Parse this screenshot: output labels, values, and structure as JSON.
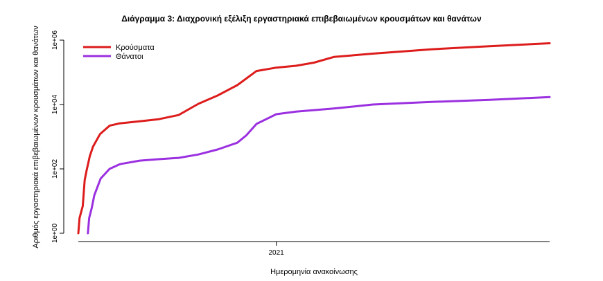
{
  "chart_data": {
    "type": "line",
    "title": "Διάγραμμα 3: Διαχρονική εξέλιξη εργαστηριακά επιβεβαιωμένων κρουσμάτων και θανάτων",
    "xlabel": "Ημερομηνία ανακοίνωσης",
    "ylabel": "Αριθμός εργαστηριακά επιβεβαιωμένων κρουσμάτων και θανάτων",
    "y_scale": "log10",
    "ylim": [
      1,
      1000000
    ],
    "y_ticks": [
      {
        "value": 1,
        "label": "1e+00"
      },
      {
        "value": 100,
        "label": "1e+02"
      },
      {
        "value": 10000,
        "label": "1e+04"
      },
      {
        "value": 1000000,
        "label": "1e+06"
      }
    ],
    "xlim": [
      "2020-02-26",
      "2022-03-05"
    ],
    "x_ticks": [
      {
        "value": "2021-01-01",
        "label": "2021"
      }
    ],
    "grid": false,
    "legend_position": "top-left",
    "series": [
      {
        "name": "Κρούσματα",
        "color": "#dd1c1c",
        "points": [
          {
            "x": "2020-02-26",
            "y": 1
          },
          {
            "x": "2020-02-28",
            "y": 3
          },
          {
            "x": "2020-03-04",
            "y": 7
          },
          {
            "x": "2020-03-07",
            "y": 45
          },
          {
            "x": "2020-03-10",
            "y": 90
          },
          {
            "x": "2020-03-15",
            "y": 250
          },
          {
            "x": "2020-03-20",
            "y": 490
          },
          {
            "x": "2020-03-31",
            "y": 1200
          },
          {
            "x": "2020-04-15",
            "y": 2200
          },
          {
            "x": "2020-05-01",
            "y": 2600
          },
          {
            "x": "2020-06-01",
            "y": 3000
          },
          {
            "x": "2020-07-01",
            "y": 3500
          },
          {
            "x": "2020-08-01",
            "y": 4700
          },
          {
            "x": "2020-09-01",
            "y": 10500
          },
          {
            "x": "2020-10-01",
            "y": 19000
          },
          {
            "x": "2020-11-01",
            "y": 40000
          },
          {
            "x": "2020-12-01",
            "y": 110000
          },
          {
            "x": "2021-01-01",
            "y": 140000
          },
          {
            "x": "2021-02-01",
            "y": 160000
          },
          {
            "x": "2021-03-01",
            "y": 200000
          },
          {
            "x": "2021-04-01",
            "y": 300000
          },
          {
            "x": "2021-06-01",
            "y": 380000
          },
          {
            "x": "2021-09-01",
            "y": 520000
          },
          {
            "x": "2021-12-01",
            "y": 650000
          },
          {
            "x": "2022-03-05",
            "y": 800000
          }
        ]
      },
      {
        "name": "Θάνατοι",
        "color": "#9b30e0",
        "points": [
          {
            "x": "2020-03-12",
            "y": 1
          },
          {
            "x": "2020-03-14",
            "y": 3
          },
          {
            "x": "2020-03-18",
            "y": 6
          },
          {
            "x": "2020-03-22",
            "y": 15
          },
          {
            "x": "2020-04-01",
            "y": 50
          },
          {
            "x": "2020-04-15",
            "y": 100
          },
          {
            "x": "2020-05-01",
            "y": 140
          },
          {
            "x": "2020-06-01",
            "y": 180
          },
          {
            "x": "2020-07-01",
            "y": 200
          },
          {
            "x": "2020-08-01",
            "y": 220
          },
          {
            "x": "2020-09-01",
            "y": 280
          },
          {
            "x": "2020-10-01",
            "y": 400
          },
          {
            "x": "2020-11-01",
            "y": 650
          },
          {
            "x": "2020-11-15",
            "y": 1100
          },
          {
            "x": "2020-12-01",
            "y": 2500
          },
          {
            "x": "2021-01-01",
            "y": 5000
          },
          {
            "x": "2021-02-01",
            "y": 6000
          },
          {
            "x": "2021-04-01",
            "y": 7500
          },
          {
            "x": "2021-06-01",
            "y": 10000
          },
          {
            "x": "2021-09-01",
            "y": 12000
          },
          {
            "x": "2021-12-01",
            "y": 14000
          },
          {
            "x": "2022-03-05",
            "y": 17000
          }
        ]
      }
    ]
  }
}
